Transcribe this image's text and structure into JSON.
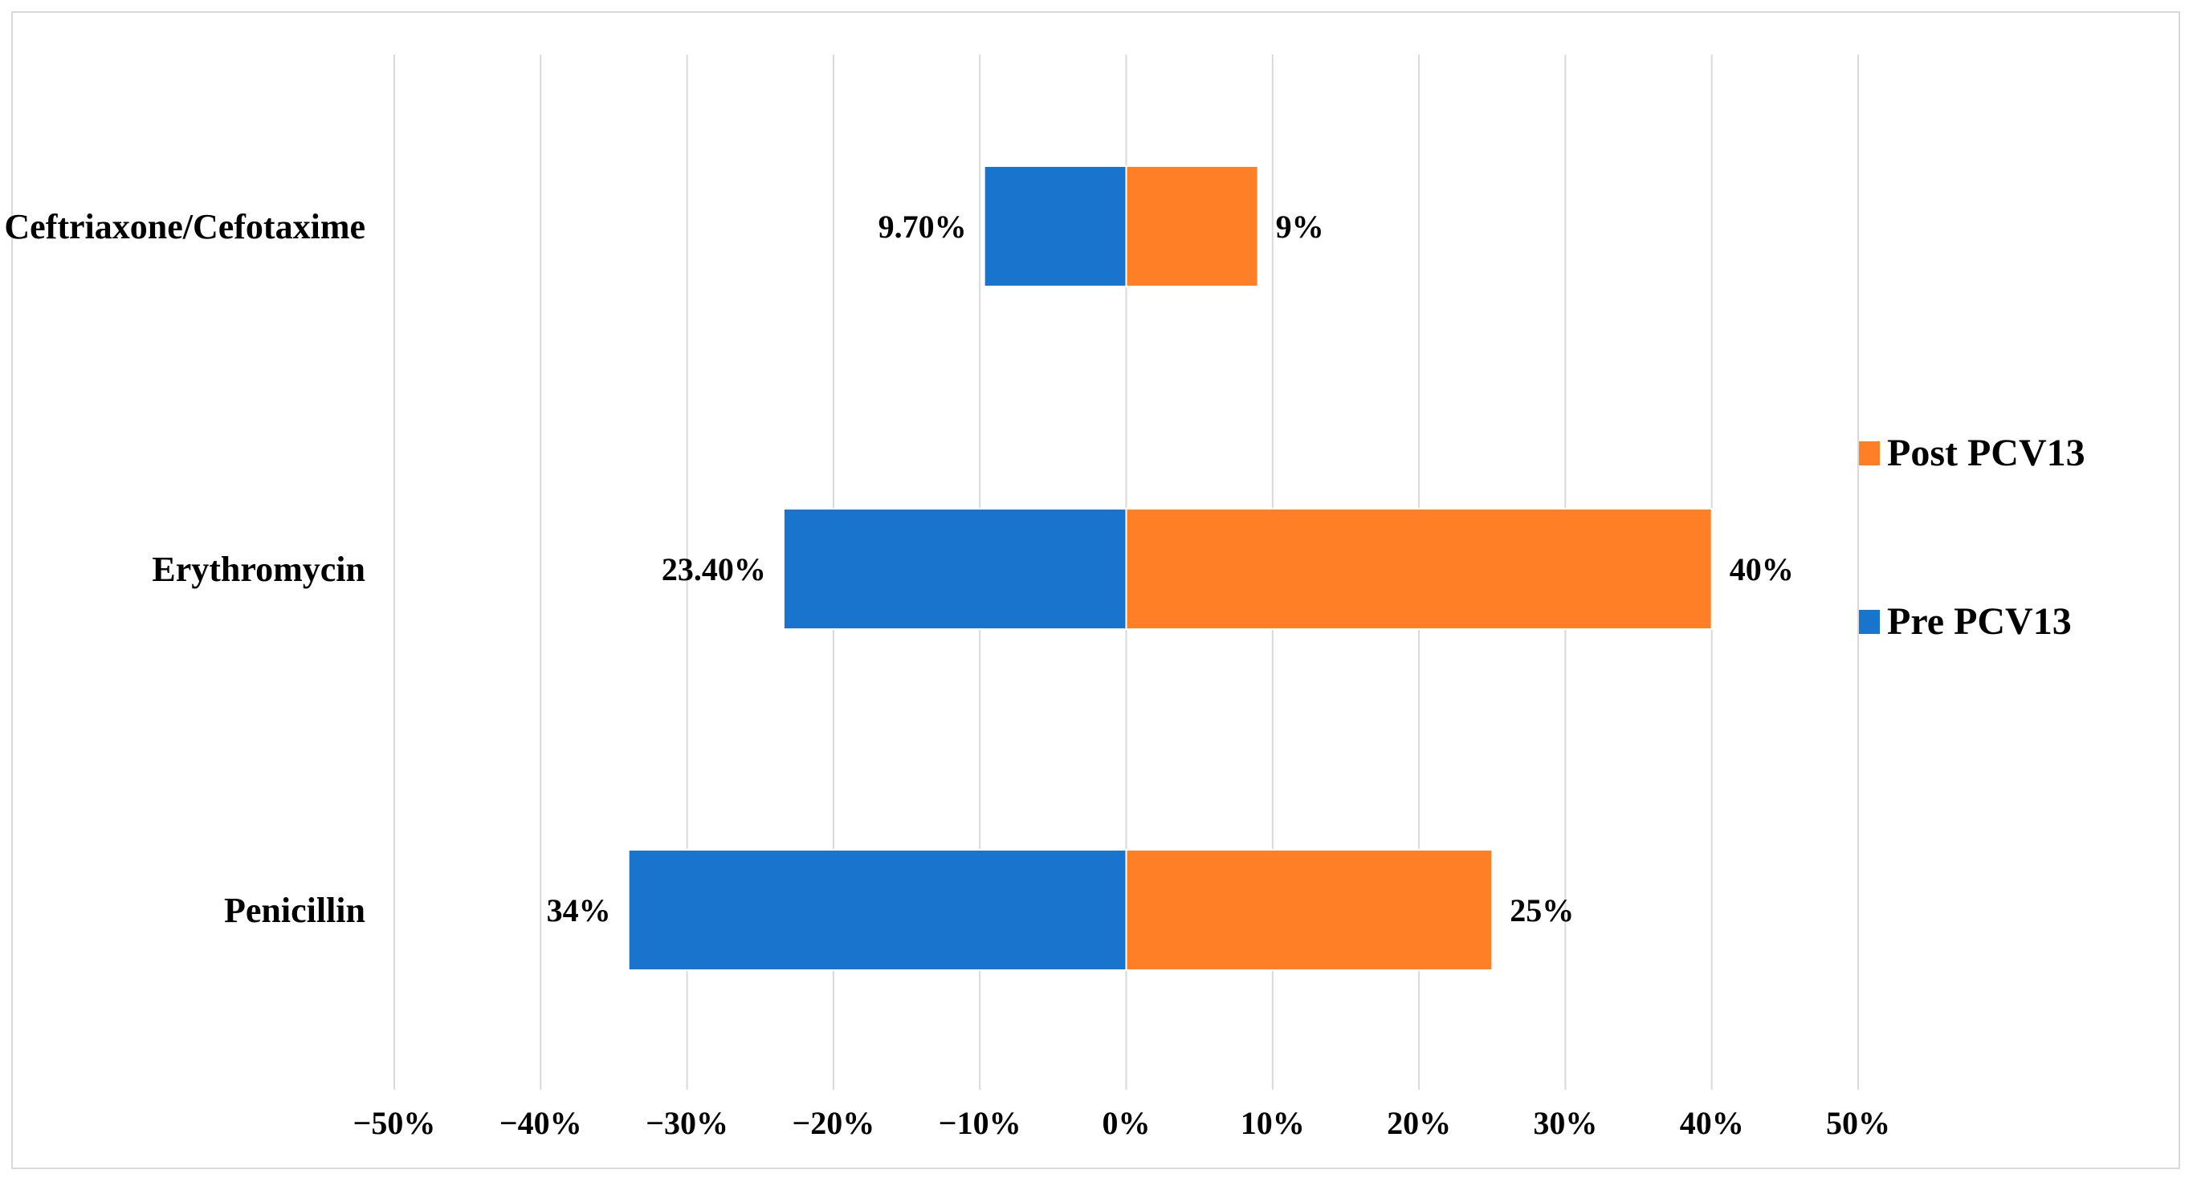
{
  "chart_data": {
    "type": "bar",
    "orientation": "horizontal-diverging",
    "categories": [
      "Ceftriaxone/Cefotaxime",
      "Erythromycin",
      "Penicillin"
    ],
    "series": [
      {
        "name": "Pre PCV13",
        "color": "#1874cd",
        "values": [
          -9.7,
          -23.4,
          -34
        ],
        "labels": [
          "9.70%",
          "23.40%",
          "34%"
        ]
      },
      {
        "name": "Post PCV13",
        "color": "#ff7f27",
        "values": [
          9,
          40,
          25
        ],
        "labels": [
          "9%",
          "40%",
          "25%"
        ]
      }
    ],
    "xlim": [
      -50,
      50
    ],
    "xticks": [
      -50,
      -40,
      -30,
      -20,
      -10,
      0,
      10,
      20,
      30,
      40,
      50
    ],
    "xtick_labels": [
      "−50%",
      "−40%",
      "−30%",
      "−20%",
      "−10%",
      "0%",
      "10%",
      "20%",
      "30%",
      "40%",
      "50%"
    ],
    "grid": "vertical",
    "legend_position": "right",
    "legend_order": [
      "Post PCV13",
      "Pre PCV13"
    ]
  }
}
